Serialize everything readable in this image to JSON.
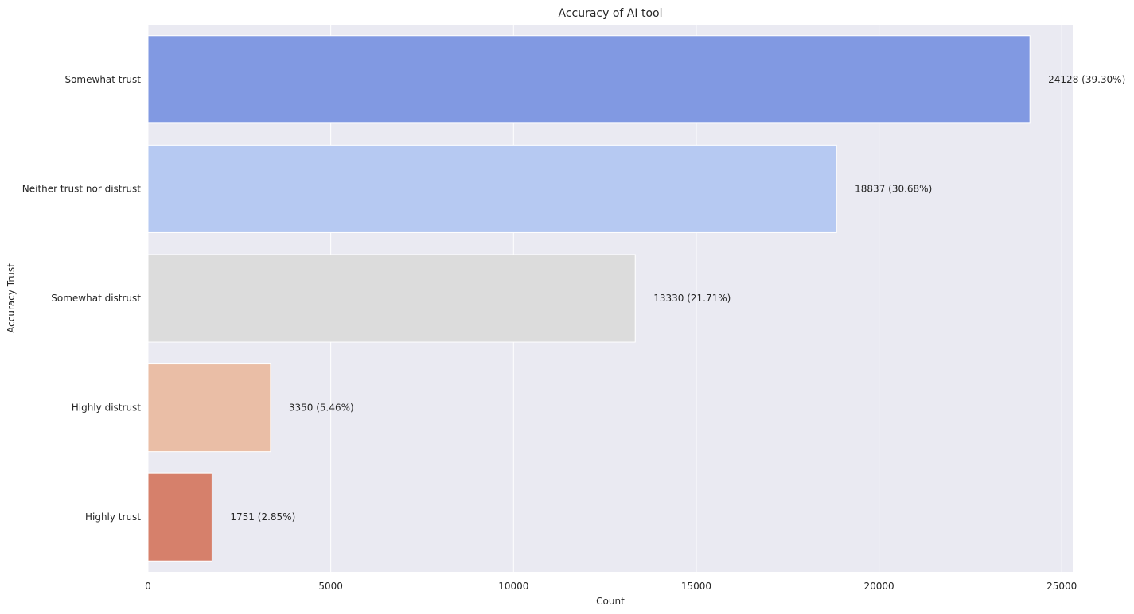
{
  "chart_data": {
    "type": "bar",
    "orientation": "horizontal",
    "title": "Accuracy of AI tool",
    "xlabel": "Count",
    "ylabel": "Accuracy Trust",
    "xlim": [
      0,
      25300
    ],
    "xticks": [
      0,
      5000,
      10000,
      15000,
      20000,
      25000
    ],
    "grid": true,
    "categories": [
      "Somewhat trust",
      "Neither trust nor distrust",
      "Somewhat distrust",
      "Highly distrust",
      "Highly trust"
    ],
    "values": [
      24128,
      18837,
      13330,
      3350,
      1751
    ],
    "data_labels": [
      "24128 (39.30%)",
      "18837 (30.68%)",
      "13330 (21.71%)",
      "3350 (5.46%)",
      "1751 (2.85%)"
    ],
    "colors": [
      "#8199e2",
      "#b6c9f2",
      "#dcdcdc",
      "#eabea6",
      "#d6806b"
    ],
    "background": "#eaeaf2",
    "gridcolor": "#ffffff"
  }
}
